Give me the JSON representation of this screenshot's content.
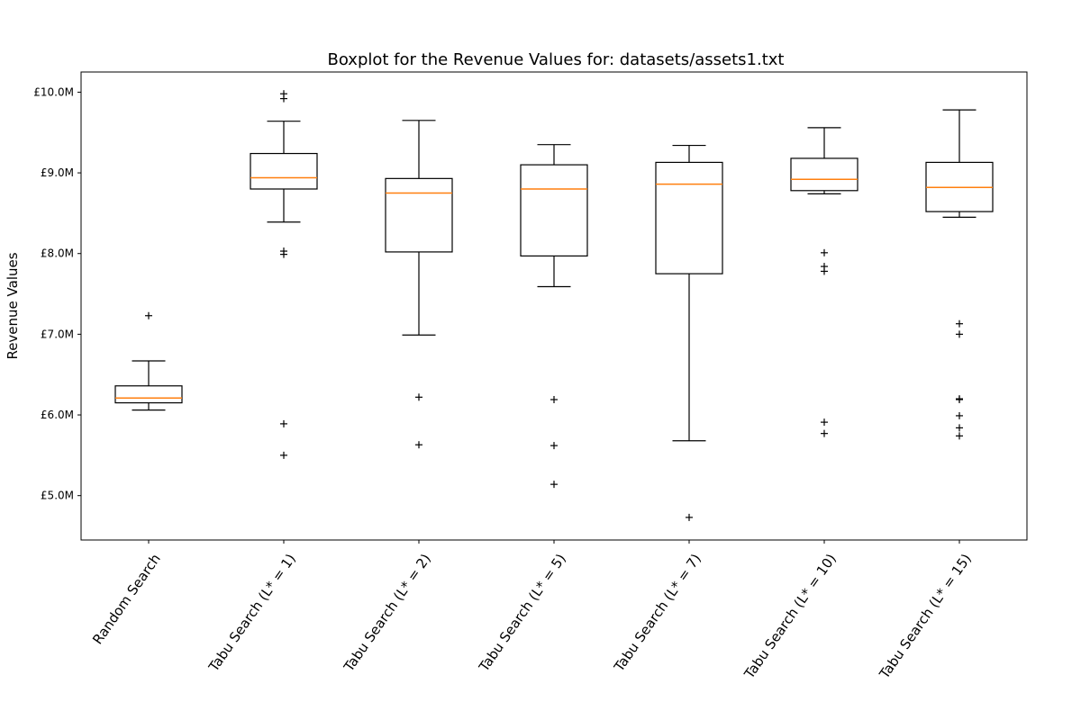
{
  "chart_data": {
    "type": "boxplot",
    "title": "Boxplot for the Revenue Values for: datasets/assets1.txt",
    "xlabel": "",
    "ylabel": "Revenue Values",
    "ylim": [
      4.45,
      10.25
    ],
    "yticks": [
      5.0,
      6.0,
      7.0,
      8.0,
      9.0,
      10.0
    ],
    "ytick_labels": [
      "£5.0M",
      "£6.0M",
      "£7.0M",
      "£8.0M",
      "£9.0M",
      "£10.0M"
    ],
    "grid": false,
    "colors": {
      "box": "#000000",
      "median": "#ff7f0e",
      "flier": "#000000"
    },
    "categories": [
      "Random Search",
      "Tabu Search (L* = 1)",
      "Tabu Search (L* = 2)",
      "Tabu Search (L* = 5)",
      "Tabu Search (L* = 7)",
      "Tabu Search (L* = 10)",
      "Tabu Search (L* = 15)"
    ],
    "boxes": [
      {
        "whisker_low": 6.06,
        "q1": 6.15,
        "median": 6.21,
        "q3": 6.36,
        "whisker_high": 6.67,
        "fliers": [
          7.23
        ]
      },
      {
        "whisker_low": 8.39,
        "q1": 8.8,
        "median": 8.94,
        "q3": 9.24,
        "whisker_high": 9.64,
        "fliers": [
          9.92,
          9.98,
          8.03,
          7.99,
          5.89,
          5.5
        ]
      },
      {
        "whisker_low": 6.99,
        "q1": 8.02,
        "median": 8.75,
        "q3": 8.93,
        "whisker_high": 9.65,
        "fliers": [
          6.22,
          5.63
        ]
      },
      {
        "whisker_low": 7.59,
        "q1": 7.97,
        "median": 8.8,
        "q3": 9.1,
        "whisker_high": 9.35,
        "fliers": [
          6.19,
          5.62,
          5.14
        ]
      },
      {
        "whisker_low": 5.68,
        "q1": 7.75,
        "median": 8.86,
        "q3": 9.13,
        "whisker_high": 9.34,
        "fliers": [
          4.73
        ]
      },
      {
        "whisker_low": 8.74,
        "q1": 8.78,
        "median": 8.92,
        "q3": 9.18,
        "whisker_high": 9.56,
        "fliers": [
          8.01,
          7.84,
          7.78,
          5.91,
          5.77
        ]
      },
      {
        "whisker_low": 8.45,
        "q1": 8.52,
        "median": 8.82,
        "q3": 9.13,
        "whisker_high": 9.78,
        "fliers": [
          7.13,
          7.0,
          6.2,
          6.19,
          5.99,
          5.84,
          5.74
        ]
      }
    ]
  }
}
